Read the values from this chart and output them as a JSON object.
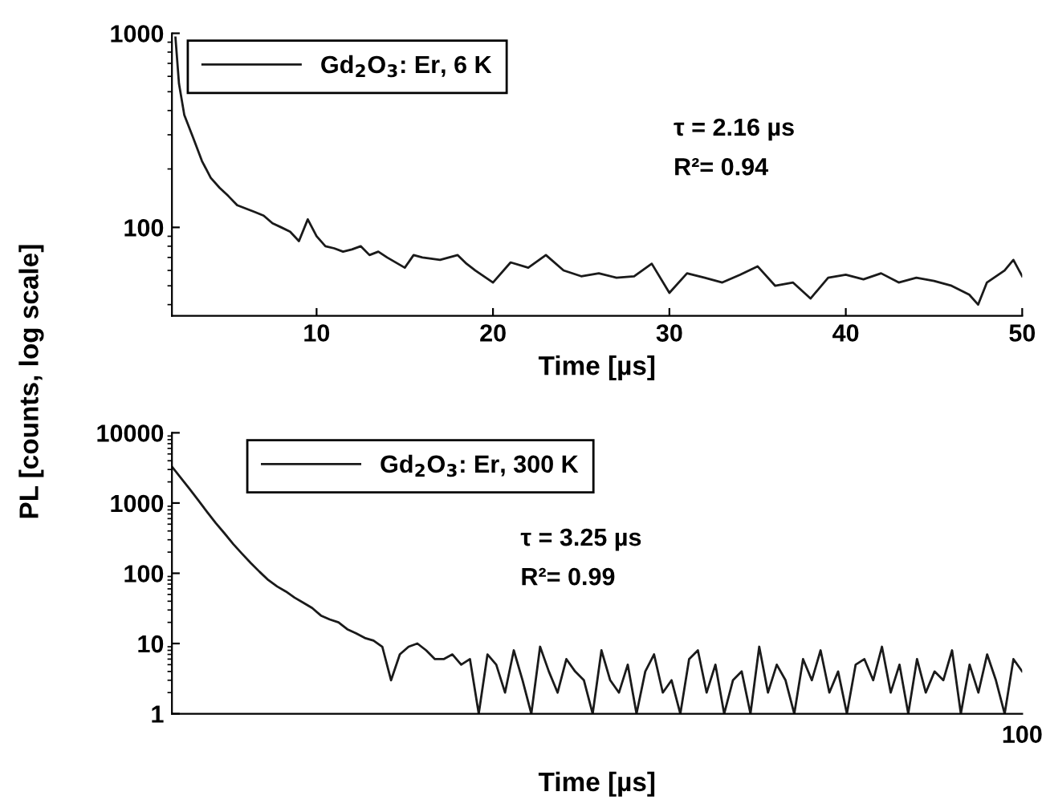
{
  "chart_data": [
    {
      "type": "line",
      "ylabel": "PL [counts, log scale]",
      "xlabel": "Time [µs]",
      "log": "y",
      "legend": "top left",
      "grid": false,
      "marker": "none",
      "line_style": "solid",
      "xlim": [
        1.8,
        50
      ],
      "xticks": [
        10,
        20,
        30,
        40,
        50
      ],
      "ylim": [
        35,
        1000
      ],
      "yticks": [
        100,
        1000
      ],
      "annotations": [
        "τ = 2.16 µs",
        "R²= 0.94"
      ],
      "series": [
        {
          "name": "Gd$_{2}$O$_{3}$: Er, 6 K",
          "color": "#1a1a1a",
          "x": [
            2.0,
            2.2,
            2.5,
            3.0,
            3.5,
            4.0,
            4.5,
            5.0,
            5.5,
            6.0,
            6.5,
            7,
            7.5,
            8,
            8.5,
            9,
            9.5,
            10,
            10.5,
            11,
            11.5,
            12,
            12.5,
            13,
            13.5,
            14,
            15,
            15.5,
            16,
            17,
            18,
            18.5,
            19,
            20,
            21,
            22,
            23,
            24,
            25,
            26,
            27,
            28,
            29,
            30,
            31,
            32,
            33,
            34,
            35,
            36,
            37,
            38,
            39,
            40,
            41,
            42,
            43,
            44,
            45,
            46,
            47,
            47.5,
            48,
            49,
            49.5,
            50
          ],
          "values": [
            950,
            550,
            380,
            290,
            220,
            180,
            160,
            145,
            130,
            125,
            120,
            115,
            105,
            100,
            95,
            85,
            110,
            90,
            80,
            78,
            75,
            77,
            80,
            72,
            75,
            70,
            62,
            72,
            70,
            68,
            72,
            65,
            60,
            52,
            66,
            62,
            72,
            60,
            56,
            58,
            55,
            56,
            65,
            46,
            58,
            55,
            52,
            57,
            63,
            50,
            52,
            43,
            55,
            57,
            54,
            58,
            52,
            55,
            53,
            50,
            45,
            40,
            52,
            60,
            68,
            56
          ]
        }
      ]
    },
    {
      "type": "line",
      "xlabel": "Time [µs]",
      "log": "y",
      "legend": "top left",
      "grid": false,
      "marker": "none",
      "line_style": "solid",
      "categories": [
        null,
        null,
        null,
        null,
        null,
        null,
        null,
        null,
        null,
        null,
        null,
        null,
        null,
        null,
        null,
        null,
        null,
        null,
        null,
        null,
        null,
        null,
        null,
        null,
        null,
        null,
        null,
        null,
        null,
        null,
        null,
        null,
        null,
        null,
        null,
        null,
        null,
        null,
        null,
        null,
        null,
        null,
        null,
        null,
        null,
        null,
        null,
        null,
        null,
        null,
        null,
        null,
        null,
        null,
        null,
        null,
        null,
        null,
        null,
        null,
        null,
        null,
        null,
        null,
        null,
        null,
        null,
        null,
        null,
        null,
        null,
        null,
        null,
        null,
        null,
        null,
        null,
        null,
        null,
        null,
        null,
        null,
        null,
        null,
        null,
        null,
        null,
        null,
        null,
        null,
        null,
        null,
        null,
        null,
        null,
        null,
        null,
        null
      ],
      "ylim": [
        1,
        10000
      ],
      "yticks": [
        1,
        10,
        100,
        1000,
        10000
      ],
      "annotations": [
        "τ = 3.25 µs",
        "R²= 0.99",
        "100"
      ],
      "series": [
        {
          "name": "Gd$_{2}$O$_{3}$: Er, 300 K",
          "color": "#1a1a1a",
          "values": [
            3300,
            2300,
            1600,
            1100,
            750,
            520,
            370,
            260,
            190,
            140,
            105,
            80,
            65,
            55,
            45,
            38,
            32,
            25,
            22,
            20,
            16,
            14,
            12,
            11,
            9,
            3,
            7,
            9,
            10,
            8,
            6,
            6,
            7,
            5,
            6,
            1,
            7,
            5,
            2,
            8,
            3,
            1,
            9,
            4,
            2,
            6,
            4,
            3,
            1,
            8,
            3,
            2,
            5,
            1,
            4,
            7,
            2,
            3,
            1,
            6,
            8,
            2,
            5,
            1,
            3,
            4,
            1,
            9,
            2,
            5,
            3,
            1,
            6,
            3,
            8,
            2,
            4,
            1,
            5,
            6,
            3,
            9,
            2,
            5,
            1,
            6,
            2,
            4,
            3,
            8,
            1,
            5,
            2,
            7,
            3,
            1,
            6,
            4
          ]
        }
      ]
    }
  ]
}
